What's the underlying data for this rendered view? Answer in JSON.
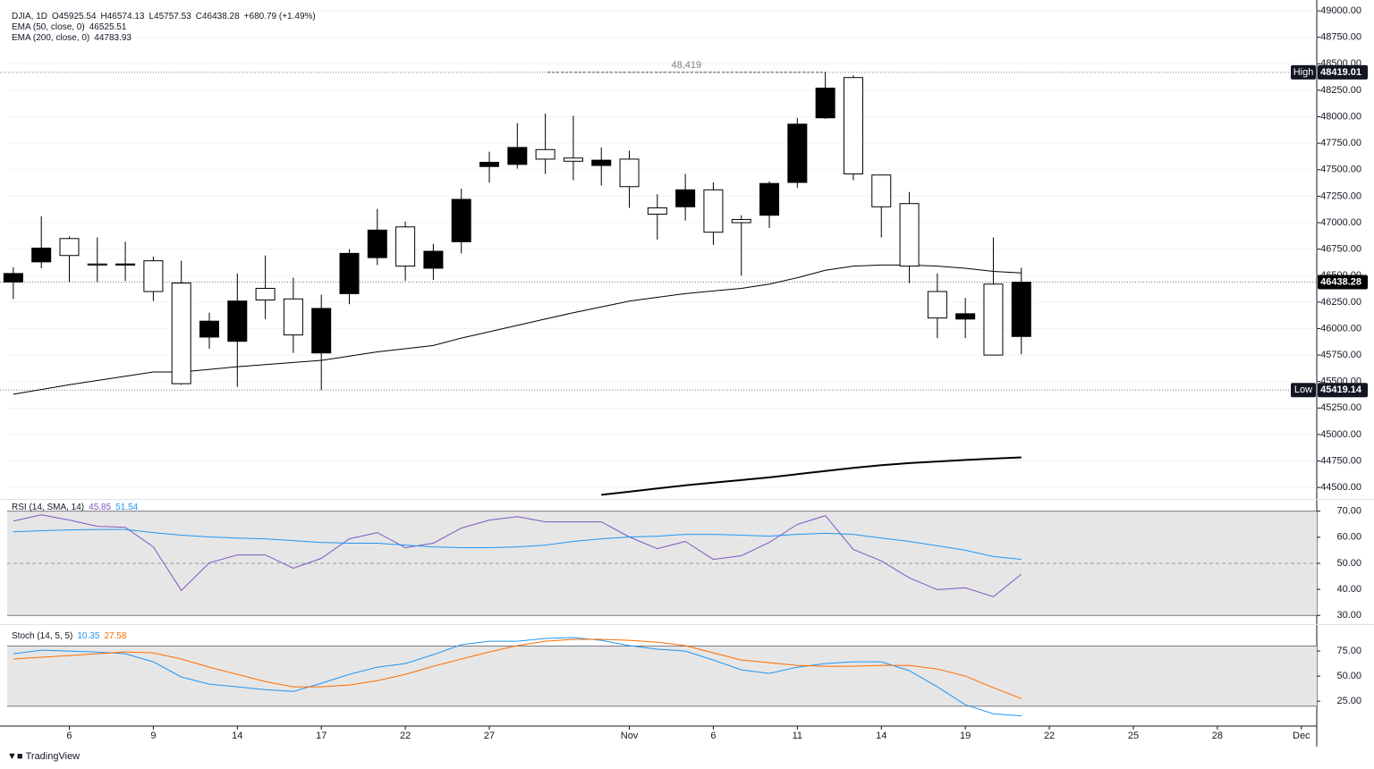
{
  "chart_data": [
    {
      "type": "candlestick",
      "title": "DJIA, 1D",
      "ohlc_labels": [
        "O45925.54",
        "H46574.13",
        "L45757.53",
        "C46438.28",
        "+680.79 (+1.49%)"
      ],
      "open": [
        46440,
        46630,
        46850,
        46610,
        46600,
        46640,
        46430,
        45920,
        45880,
        46380,
        46280,
        45770,
        46330,
        46670,
        46960,
        46570,
        46820,
        47530,
        47550,
        47690,
        47610,
        47540,
        47600,
        47140,
        47150,
        47310,
        47030,
        47070,
        47380,
        47990,
        48370,
        47450,
        47180,
        46350,
        46090,
        46420,
        45925.54
      ],
      "high": [
        46580,
        47060,
        46870,
        46860,
        46820,
        46680,
        46640,
        46150,
        46520,
        46690,
        46480,
        46320,
        46750,
        47130,
        47010,
        46800,
        47320,
        47670,
        47940,
        48030,
        48010,
        47710,
        47680,
        47270,
        47460,
        47380,
        47070,
        47390,
        47990,
        48419.01,
        48390,
        47450,
        47290,
        46520,
        46290,
        46860,
        46574.13
      ],
      "low": [
        46280,
        46570,
        46440,
        46440,
        46450,
        46260,
        45470,
        45810,
        45450,
        46090,
        45770,
        45419.14,
        46230,
        46600,
        46450,
        46460,
        46710,
        47380,
        47510,
        47460,
        47400,
        47350,
        47140,
        46840,
        47020,
        46790,
        46500,
        46950,
        47330,
        47980,
        47400,
        46860,
        46430,
        45910,
        45910,
        45750,
        45757.53
      ],
      "close": [
        46520,
        46760,
        46690,
        46600,
        46610,
        46350,
        45480,
        46070,
        46260,
        46270,
        45940,
        46190,
        46710,
        46930,
        46590,
        46730,
        47220,
        47570,
        47710,
        47600,
        47580,
        47590,
        47340,
        47080,
        47310,
        46910,
        47000,
        47370,
        47930,
        48270,
        47460,
        47150,
        46590,
        46100,
        46140,
        45750,
        46438.28
      ],
      "up_color": "#000000",
      "down_color": "#ffffff",
      "overlays": [
        {
          "name": "EMA (50, close, 0)",
          "color": "#000000",
          "width": 1,
          "values": [
            45380,
            45425,
            45470,
            45510,
            45550,
            45590,
            45590,
            45615,
            45640,
            45660,
            45680,
            45700,
            45740,
            45780,
            45810,
            45840,
            45910,
            45970,
            46030,
            46090,
            46150,
            46205,
            46260,
            46295,
            46330,
            46355,
            46380,
            46420,
            46480,
            46550,
            46590,
            46600,
            46600,
            46590,
            46570,
            46540,
            46525.51
          ]
        },
        {
          "name": "EMA (200, close, 0)",
          "color": "#000000",
          "width": 2,
          "values": [
            null,
            null,
            null,
            null,
            null,
            null,
            null,
            null,
            null,
            null,
            null,
            null,
            null,
            null,
            null,
            null,
            null,
            null,
            null,
            null,
            null,
            44430,
            44460,
            44490,
            44520,
            44545,
            44570,
            44595,
            44625,
            44655,
            44685,
            44710,
            44730,
            44745,
            44760,
            44772,
            44783.93
          ]
        }
      ],
      "high_marker": {
        "label": "High"
      },
      "low_marker": {
        "label": "Low"
      },
      "high_annotation": {
        "value": 48419.01,
        "label": "48,419"
      },
      "xlim": [
        -0.22,
        46.55
      ],
      "xticks": [
        {
          "value": 2,
          "label": "6"
        },
        {
          "value": 5,
          "label": "9"
        },
        {
          "value": 8,
          "label": "14"
        },
        {
          "value": 11,
          "label": "17"
        },
        {
          "value": 14,
          "label": "22"
        },
        {
          "value": 17,
          "label": "27"
        },
        {
          "value": 22,
          "label": "Nov"
        },
        {
          "value": 25,
          "label": "6"
        },
        {
          "value": 28,
          "label": "11"
        },
        {
          "value": 31,
          "label": "14"
        },
        {
          "value": 34,
          "label": "19"
        },
        {
          "value": 37,
          "label": "22"
        },
        {
          "value": 40,
          "label": "25"
        },
        {
          "value": 43,
          "label": "28"
        },
        {
          "value": 46,
          "label": "Dec"
        }
      ],
      "ylim": [
        44400,
        49060
      ],
      "yticks": [
        {
          "value": 44500,
          "label": "44500.00"
        },
        {
          "value": 44750,
          "label": "44750.00"
        },
        {
          "value": 45000,
          "label": "45000.00"
        },
        {
          "value": 45250,
          "label": "45250.00"
        },
        {
          "value": 45500,
          "label": "45500.00"
        },
        {
          "value": 45750,
          "label": "45750.00"
        },
        {
          "value": 46000,
          "label": "46000.00"
        },
        {
          "value": 46250,
          "label": "46250.00"
        },
        {
          "value": 46500,
          "label": "46500.00"
        },
        {
          "value": 46750,
          "label": "46750.00"
        },
        {
          "value": 47000,
          "label": "47000.00"
        },
        {
          "value": 47250,
          "label": "47250.00"
        },
        {
          "value": 47500,
          "label": "47500.00"
        },
        {
          "value": 47750,
          "label": "47750.00"
        },
        {
          "value": 48000,
          "label": "48000.00"
        },
        {
          "value": 48250,
          "label": "48250.00"
        },
        {
          "value": 48500,
          "label": "48500.00"
        },
        {
          "value": 48750,
          "label": "48750.00"
        },
        {
          "value": 49000,
          "label": "49000.00"
        }
      ],
      "grid": true
    },
    {
      "type": "line",
      "title": "RSI (14, SMA, 14)",
      "series": [
        {
          "color": "#7e57c2",
          "values": [
            66.2,
            68.6,
            66.6,
            64.2,
            63.8,
            56.3,
            39.6,
            50.2,
            53.2,
            53.2,
            48.1,
            51.9,
            59.4,
            61.8,
            56.0,
            57.7,
            63.5,
            66.6,
            67.9,
            65.9,
            65.9,
            65.9,
            60.1,
            55.6,
            58.4,
            51.5,
            52.9,
            58.0,
            64.9,
            68.3,
            55.3,
            50.9,
            44.4,
            39.9,
            40.6,
            37.2,
            45.85
          ]
        },
        {
          "color": "#2196f3",
          "values": [
            62.1,
            62.5,
            62.8,
            63,
            63,
            61.8,
            60.8,
            60.1,
            59.7,
            59.4,
            58.7,
            58,
            57.7,
            57.7,
            57,
            56.3,
            56,
            56,
            56.3,
            57,
            58.4,
            59.4,
            60.1,
            60.4,
            61.1,
            61.1,
            60.8,
            60.4,
            61.1,
            61.5,
            61.1,
            59.7,
            58.4,
            56.7,
            55,
            52.6,
            51.54
          ]
        }
      ],
      "ylim": [
        27,
        74
      ],
      "band": [
        30,
        70
      ],
      "midline": 50,
      "yticks": [
        {
          "value": 70,
          "label": "70.00"
        },
        {
          "value": 60,
          "label": "60.00"
        },
        {
          "value": 50,
          "label": "50.00"
        },
        {
          "value": 40,
          "label": "40.00"
        },
        {
          "value": 30,
          "label": "30.00"
        }
      ]
    },
    {
      "type": "line",
      "title": "Stoch (14, 5, 5)",
      "series": [
        {
          "color": "#2196f3",
          "values": [
            72.3,
            75.9,
            75,
            74,
            72.3,
            64.3,
            49.1,
            42,
            39.3,
            36.6,
            34.8,
            42.9,
            51.8,
            58.9,
            62.5,
            71.4,
            81.3,
            84.8,
            84.8,
            87.5,
            88.4,
            85.7,
            80.4,
            76.8,
            75,
            66.1,
            56.3,
            52.7,
            58.9,
            62.5,
            64.3,
            64.3,
            55.4,
            39.3,
            21.4,
            12.5,
            10.35
          ]
        },
        {
          "color": "#ff6d00",
          "values": [
            67,
            68.8,
            70.5,
            72.3,
            74.1,
            73.2,
            67,
            58.9,
            51.8,
            44.6,
            39.3,
            39.3,
            41.1,
            45.5,
            51.8,
            59.8,
            67,
            74.1,
            80.4,
            84.8,
            86.6,
            86.6,
            85.7,
            83.9,
            80.4,
            73.2,
            66.1,
            63.4,
            60.7,
            59.8,
            59.8,
            60.7,
            60.7,
            57.1,
            50,
            38.4,
            27.58
          ]
        }
      ],
      "ylim": [
        2,
        100
      ],
      "band": [
        20,
        80
      ],
      "yticks": [
        {
          "value": 75,
          "label": "75.00"
        },
        {
          "value": 50,
          "label": "50.00"
        },
        {
          "value": 25,
          "label": "25.00"
        }
      ]
    }
  ],
  "footer": "TradingView"
}
